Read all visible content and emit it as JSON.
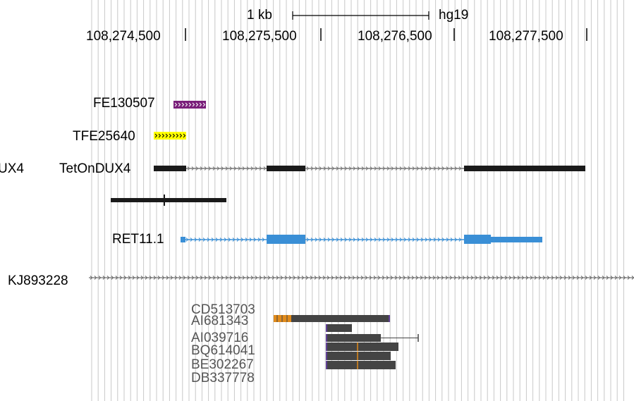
{
  "ruler": {
    "scale_label": "1 kb",
    "assembly": "hg19",
    "positions": [
      "108,274,500",
      "108,275,500",
      "108,276,500",
      "108,277,500"
    ]
  },
  "tracks": {
    "fe_label": "FE130507",
    "tfe_label": "TFE25640",
    "left_cut_label": "UX4",
    "tetondux4_label": "TetOnDUX4",
    "ret_label": "RET11.1",
    "kj_label": "KJ893228",
    "est_labels": [
      "CD513703",
      "AI681343",
      "AI039716",
      "BQ614041",
      "BE302267",
      "DB337778"
    ]
  },
  "colors": {
    "grid": "#c8c8c8",
    "feature_black": "#1a1a1a",
    "intron_gray": "#777777",
    "fe_purple": "#7a1f7a",
    "tfe_yellow": "#ffff00",
    "ret_blue": "#3a8fd6",
    "est_gray": "#444444",
    "est_orange": "#e08a1a",
    "est_purple": "#6a3fb0"
  }
}
